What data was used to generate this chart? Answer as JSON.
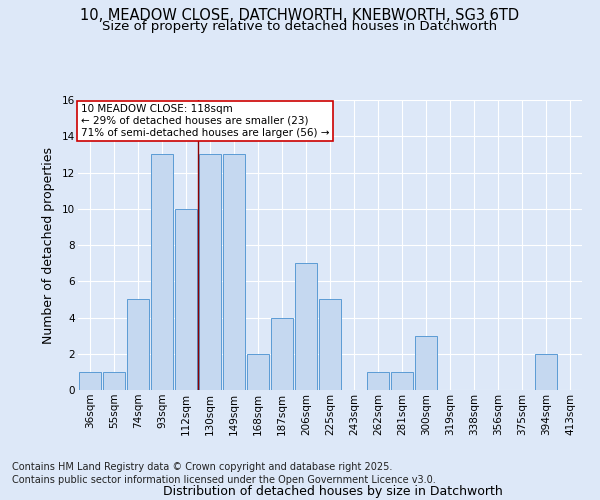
{
  "title_line1": "10, MEADOW CLOSE, DATCHWORTH, KNEBWORTH, SG3 6TD",
  "title_line2": "Size of property relative to detached houses in Datchworth",
  "xlabel": "Distribution of detached houses by size in Datchworth",
  "ylabel": "Number of detached properties",
  "categories": [
    "36sqm",
    "55sqm",
    "74sqm",
    "93sqm",
    "112sqm",
    "130sqm",
    "149sqm",
    "168sqm",
    "187sqm",
    "206sqm",
    "225sqm",
    "243sqm",
    "262sqm",
    "281sqm",
    "300sqm",
    "319sqm",
    "338sqm",
    "356sqm",
    "375sqm",
    "394sqm",
    "413sqm"
  ],
  "values": [
    1,
    1,
    5,
    13,
    10,
    13,
    13,
    2,
    4,
    7,
    5,
    0,
    1,
    1,
    3,
    0,
    0,
    0,
    0,
    2,
    0
  ],
  "bar_color": "#c5d8f0",
  "bar_edge_color": "#5b9bd5",
  "background_color": "#dde8f8",
  "grid_color": "#ffffff",
  "vline_x": 4.5,
  "vline_color": "#8b0000",
  "annotation_text": "10 MEADOW CLOSE: 118sqm\n← 29% of detached houses are smaller (23)\n71% of semi-detached houses are larger (56) →",
  "annotation_box_color": "#ffffff",
  "annotation_box_edge": "#cc0000",
  "ylim": [
    0,
    16
  ],
  "yticks": [
    0,
    2,
    4,
    6,
    8,
    10,
    12,
    14,
    16
  ],
  "footer_line1": "Contains HM Land Registry data © Crown copyright and database right 2025.",
  "footer_line2": "Contains public sector information licensed under the Open Government Licence v3.0.",
  "title_fontsize": 10.5,
  "subtitle_fontsize": 9.5,
  "axis_label_fontsize": 9,
  "tick_fontsize": 7.5,
  "annotation_fontsize": 7.5,
  "footer_fontsize": 7
}
